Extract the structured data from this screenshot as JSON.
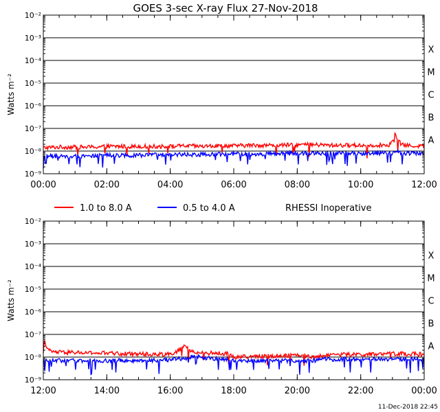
{
  "title": "GOES 3-sec X-ray Flux    27-Nov-2018",
  "footer_timestamp": "11-Dec-2018 22:45",
  "annotation": "RHESSI Inoperative",
  "colors": {
    "long_channel": "#ff0000",
    "short_channel": "#0000ff",
    "axes": "#000000",
    "grid": "#000000"
  },
  "chart_data": [
    {
      "type": "line",
      "title": "GOES 3-sec X-ray Flux    27-Nov-2018",
      "ylabel": "Watts m⁻²",
      "y_scale": "log",
      "ylim": [
        1e-09,
        0.01
      ],
      "y_ticks": [
        {
          "value": 1e-09,
          "label": "10⁻⁹"
        },
        {
          "value": 1e-08,
          "label": "10⁻⁸"
        },
        {
          "value": 1e-07,
          "label": "10⁻⁷"
        },
        {
          "value": 1e-06,
          "label": "10⁻⁶"
        },
        {
          "value": 1e-05,
          "label": "10⁻⁵"
        },
        {
          "value": 0.0001,
          "label": "10⁻⁴"
        },
        {
          "value": 0.001,
          "label": "10⁻³"
        },
        {
          "value": 0.01,
          "label": "10⁻²"
        }
      ],
      "xlim_hours": [
        0,
        12
      ],
      "x_ticks": [
        {
          "value": 0,
          "label": "00:00"
        },
        {
          "value": 2,
          "label": "02:00"
        },
        {
          "value": 4,
          "label": "04:00"
        },
        {
          "value": 6,
          "label": "06:00"
        },
        {
          "value": 8,
          "label": "08:00"
        },
        {
          "value": 10,
          "label": "10:00"
        },
        {
          "value": 12,
          "label": "12:00"
        }
      ],
      "flare_classes": [
        {
          "label": "A",
          "value": 1e-08
        },
        {
          "label": "B",
          "value": 1e-07
        },
        {
          "label": "C",
          "value": 1e-06
        },
        {
          "label": "M",
          "value": 1e-05
        },
        {
          "label": "X",
          "value": 0.0001
        }
      ],
      "gridlines": [
        1e-08,
        1e-07,
        1e-06,
        1e-05,
        0.0001,
        0.001
      ],
      "series": [
        {
          "name": "1.0 to 8.0 A",
          "color": "#ff0000",
          "x": [
            0,
            0.5,
            1,
            1.5,
            2,
            2.5,
            3,
            3.5,
            4,
            4.5,
            5,
            5.5,
            6,
            6.5,
            7,
            7.5,
            8,
            8.5,
            9,
            9.5,
            10,
            10.5,
            10.9,
            11.0,
            11.08,
            11.15,
            11.25,
            11.4,
            11.6,
            12
          ],
          "y": [
            1.4e-08,
            1.5e-08,
            1.5e-08,
            1.5e-08,
            1.6e-08,
            1.6e-08,
            1.6e-08,
            1.6e-08,
            1.6e-08,
            1.7e-08,
            1.6e-08,
            1.7e-08,
            1.7e-08,
            1.8e-08,
            1.8e-08,
            1.8e-08,
            1.9e-08,
            1.9e-08,
            1.8e-08,
            1.8e-08,
            1.8e-08,
            1.8e-08,
            1.9e-08,
            2.5e-08,
            5.5e-08,
            3.5e-08,
            2.2e-08,
            1.8e-08,
            1.7e-08,
            1.7e-08
          ]
        },
        {
          "name": "0.5 to 4.0 A",
          "color": "#0000ff",
          "x": [
            0,
            1,
            2,
            3,
            4,
            5,
            6,
            7,
            8,
            9,
            10,
            11,
            11.1,
            11.3,
            12
          ],
          "y": [
            6e-09,
            6e-09,
            6.5e-09,
            6.5e-09,
            7e-09,
            7e-09,
            7.5e-09,
            7.5e-09,
            8e-09,
            8e-09,
            8e-09,
            8e-09,
            1e-08,
            8e-09,
            8e-09
          ]
        }
      ]
    },
    {
      "type": "line",
      "ylabel": "Watts m⁻²",
      "y_scale": "log",
      "ylim": [
        1e-09,
        0.01
      ],
      "y_ticks": [
        {
          "value": 1e-09,
          "label": "10⁻⁹"
        },
        {
          "value": 1e-08,
          "label": "10⁻⁸"
        },
        {
          "value": 1e-07,
          "label": "10⁻⁷"
        },
        {
          "value": 1e-06,
          "label": "10⁻⁶"
        },
        {
          "value": 1e-05,
          "label": "10⁻⁵"
        },
        {
          "value": 0.0001,
          "label": "10⁻⁴"
        },
        {
          "value": 0.001,
          "label": "10⁻³"
        },
        {
          "value": 0.01,
          "label": "10⁻²"
        }
      ],
      "xlim_hours": [
        12,
        24
      ],
      "x_ticks": [
        {
          "value": 12,
          "label": "12:00"
        },
        {
          "value": 14,
          "label": "14:00"
        },
        {
          "value": 16,
          "label": "16:00"
        },
        {
          "value": 18,
          "label": "18:00"
        },
        {
          "value": 20,
          "label": "20:00"
        },
        {
          "value": 22,
          "label": "22:00"
        },
        {
          "value": 24,
          "label": "00:00"
        }
      ],
      "flare_classes": [
        {
          "label": "A",
          "value": 1e-08
        },
        {
          "label": "B",
          "value": 1e-07
        },
        {
          "label": "C",
          "value": 1e-06
        },
        {
          "label": "M",
          "value": 1e-05
        },
        {
          "label": "X",
          "value": 0.0001
        }
      ],
      "gridlines": [
        1e-08,
        1e-07,
        1e-06,
        1e-05,
        0.0001,
        0.001
      ],
      "series": [
        {
          "name": "1.0 to 8.0 A",
          "color": "#ff0000",
          "x": [
            12,
            12.05,
            12.15,
            12.3,
            12.6,
            13,
            13.5,
            14,
            14.5,
            15,
            15.5,
            16,
            16.3,
            16.45,
            16.6,
            16.8,
            17,
            17.4,
            17.8,
            18.0,
            18.5,
            19,
            19.5,
            19.8,
            20.0,
            20.2,
            20.5,
            20.8,
            21,
            21.5,
            22,
            22.5,
            23,
            23.5,
            24
          ],
          "y": [
            2.5e-08,
            5e-08,
            2e-08,
            1.7e-08,
            1.6e-08,
            1.6e-08,
            1.5e-08,
            1.5e-08,
            1.4e-08,
            1.4e-08,
            1.3e-08,
            1.4e-08,
            2e-08,
            3.5e-08,
            2e-08,
            1.5e-08,
            1.5e-08,
            1.5e-08,
            1.4e-08,
            1e-08,
            1.05e-08,
            1.1e-08,
            1.15e-08,
            1.2e-08,
            1.3e-08,
            1.2e-08,
            1e-08,
            1.1e-08,
            1.3e-08,
            1.3e-08,
            1.3e-08,
            1.3e-08,
            1.4e-08,
            1.4e-08,
            1.3e-08
          ]
        },
        {
          "name": "0.5 to 4.0 A",
          "color": "#0000ff",
          "x": [
            12,
            13,
            14,
            15,
            16,
            16.5,
            16.8,
            17,
            17.8,
            18.0,
            19,
            19.8,
            20.0,
            20.5,
            20.8,
            21,
            22,
            23,
            24
          ],
          "y": [
            7e-09,
            7e-09,
            7e-09,
            7e-09,
            7.5e-09,
            9e-09,
            1.2e-08,
            9e-09,
            8e-09,
            7e-09,
            7e-09,
            7e-09,
            7e-09,
            7e-09,
            8e-09,
            8e-09,
            8e-09,
            8e-09,
            8e-09
          ]
        }
      ]
    }
  ]
}
